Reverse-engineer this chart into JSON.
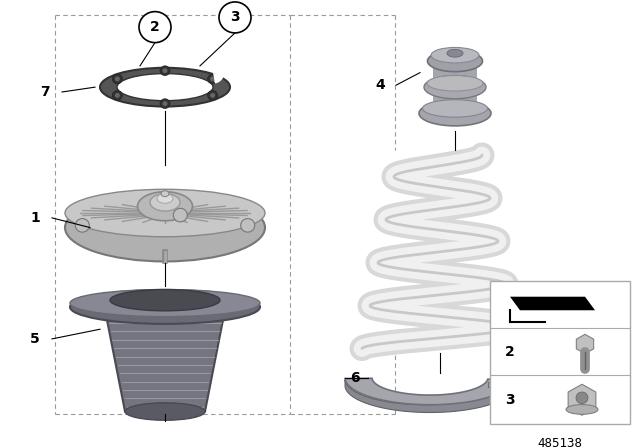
{
  "bg_color": "#ffffff",
  "part_number": "485138",
  "gasket_color": "#555555",
  "gasket_edge": "#333333",
  "mount_color": "#aaaaaa",
  "mount_dark": "#888888",
  "mount_light": "#cccccc",
  "cup_color": "#6a6a72",
  "cup_dark": "#4a4a52",
  "spring_color": "#e8e8e8",
  "spring_edge": "#c0c0c0",
  "bump_color": "#aaaaaa",
  "pad_color": "#aaaaaa",
  "label_color": "#000000",
  "dashed_color": "#999999",
  "legend_edge": "#aaaaaa"
}
